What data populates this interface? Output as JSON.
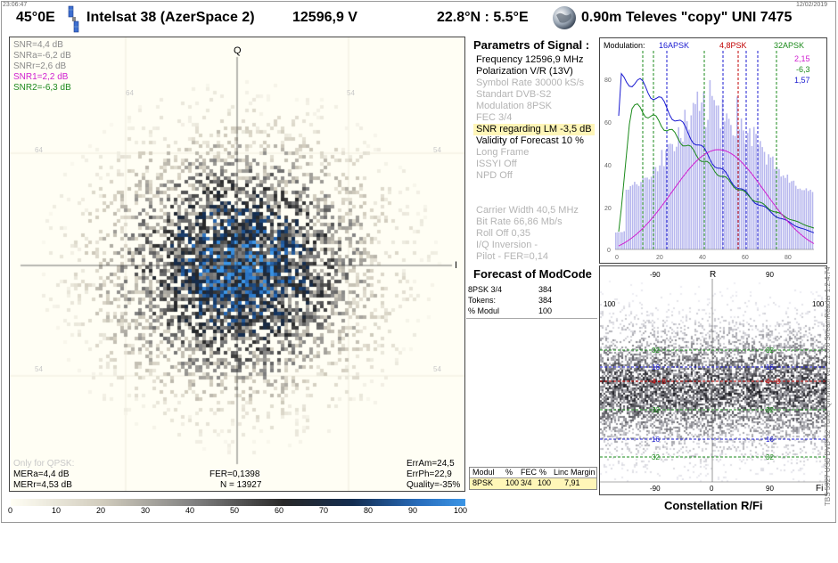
{
  "header": {
    "time": "23:06:47",
    "date": "12/02/2019",
    "orbital_position": "45°0E",
    "satellite_name": "Intelsat 38 (AzerSpace 2)",
    "frequency_polarization": "12596,9  V",
    "location": "22.8°N : 5.5°E",
    "dish_info": "0.90m  Televes \"copy\" UNI 7475"
  },
  "constellation": {
    "snr_lines": [
      {
        "text": "SNR=4,4 dB",
        "color": "#8a8a8a"
      },
      {
        "text": "SNRa=-6,2 dB",
        "color": "#8a8a8a"
      },
      {
        "text": "SNRr=2,6 dB",
        "color": "#8a8a8a"
      },
      {
        "text": "SNR1=2,2 dB",
        "color": "#d020d0"
      },
      {
        "text": "SNR2=-6,3 dB",
        "color": "#1f8a1f"
      }
    ],
    "axis_q": "Q",
    "axis_i": "I",
    "tick_labels": [
      "64",
      "54",
      "64",
      "54",
      "54",
      "54"
    ],
    "only_qpsk": "Only for QPSK:",
    "mera": "MERa=4,4 dB",
    "merr": "MERr=4,53 dB",
    "fer": "FER=0,1398",
    "n": "N = 13927",
    "erram": "ErrAm=24,5",
    "errph": "ErrPh=22,9",
    "quality": "Quality=-35%"
  },
  "scale": {
    "labels": [
      "0",
      "10",
      "20",
      "30",
      "40",
      "50",
      "60",
      "70",
      "80",
      "90",
      "100"
    ]
  },
  "params": {
    "title": "Parametrs of Signal :",
    "rows": [
      {
        "text": "Frequency  12596,9 MHz",
        "dim": false
      },
      {
        "text": "Polarization   V/R (13V)",
        "dim": false
      },
      {
        "text": "Symbol Rate  30000 kS/s",
        "dim": true
      },
      {
        "text": "Standart  DVB-S2",
        "dim": true
      },
      {
        "text": "Modulation   8PSK",
        "dim": true
      },
      {
        "text": "FEC  3/4",
        "dim": true
      },
      {
        "text": "SNR regarding LM  -3,5 dB",
        "dim": false,
        "highlight": true
      },
      {
        "text": "Validity of Forecast  10 %",
        "dim": false
      },
      {
        "text": "Long  Frame",
        "dim": true
      },
      {
        "text": "ISSYI  Off",
        "dim": true
      },
      {
        "text": "NPD   Off",
        "dim": true
      }
    ],
    "rows2": [
      {
        "text": "Carrier Width   40,5 MHz",
        "dim": true
      },
      {
        "text": "Bit Rate  66,86 Mb/s",
        "dim": true
      },
      {
        "text": "Roll Off   0,35",
        "dim": true
      },
      {
        "text": "I/Q Inversion    -",
        "dim": true
      },
      {
        "text": "Pilot    -        FER=0,14",
        "dim": true
      }
    ]
  },
  "forecast": {
    "title": "Forecast of ModCode",
    "rows": [
      {
        "label": "8PSK 3/4",
        "value": "384"
      },
      {
        "label": "Tokens:",
        "value": "384"
      },
      {
        "label": "% Modul",
        "value": "100"
      }
    ]
  },
  "modcode_table": {
    "headers": [
      "Modul",
      "%",
      "FEC",
      "%",
      "Linc Margin"
    ],
    "row": [
      "8PSK",
      "100",
      "3/4",
      "100",
      "7,91"
    ]
  },
  "histogram": {
    "title": "Modulation:",
    "mods": [
      {
        "text": "16APSK",
        "color": "#1a1ad0"
      },
      {
        "text": "4,8PSK",
        "color": "#c00000"
      },
      {
        "text": "32APSK",
        "color": "#1a8a1a"
      }
    ],
    "values": [
      {
        "text": "2,15",
        "color": "#d020d0"
      },
      {
        "text": "-6,3",
        "color": "#1a8a1a"
      },
      {
        "text": "1,57",
        "color": "#1a1ad0"
      }
    ],
    "y_ticks": [
      "0",
      "20",
      "40",
      "60",
      "80"
    ],
    "x_ticks": [
      "0",
      "20",
      "40",
      "60",
      "80"
    ]
  },
  "rfi": {
    "axis_r": "R",
    "axis_fi": "Fi",
    "x_ticks_top": [
      "-90",
      "90"
    ],
    "x_ticks_bottom": [
      "-90",
      "0",
      "90"
    ],
    "y_tick": "100",
    "lines": [
      {
        "label": "32",
        "color": "#1a8a1a"
      },
      {
        "label": "16",
        "color": "#1a1ad0"
      },
      {
        "label": "4 - 8",
        "color": "#c00000"
      },
      {
        "label": "32",
        "color": "#1a8a1a"
      },
      {
        "label": "16",
        "color": "#1a1ad0"
      },
      {
        "label": "32",
        "color": "#1a8a1a"
      }
    ]
  },
  "labels": {
    "constellation_rfi": "Constellation  R/Fi",
    "side_text": "TBS 5927 USB DVB-S2 Tuner    Qmonitor  ver 2.2.0.8    StreamReader 1.2.4.74"
  }
}
